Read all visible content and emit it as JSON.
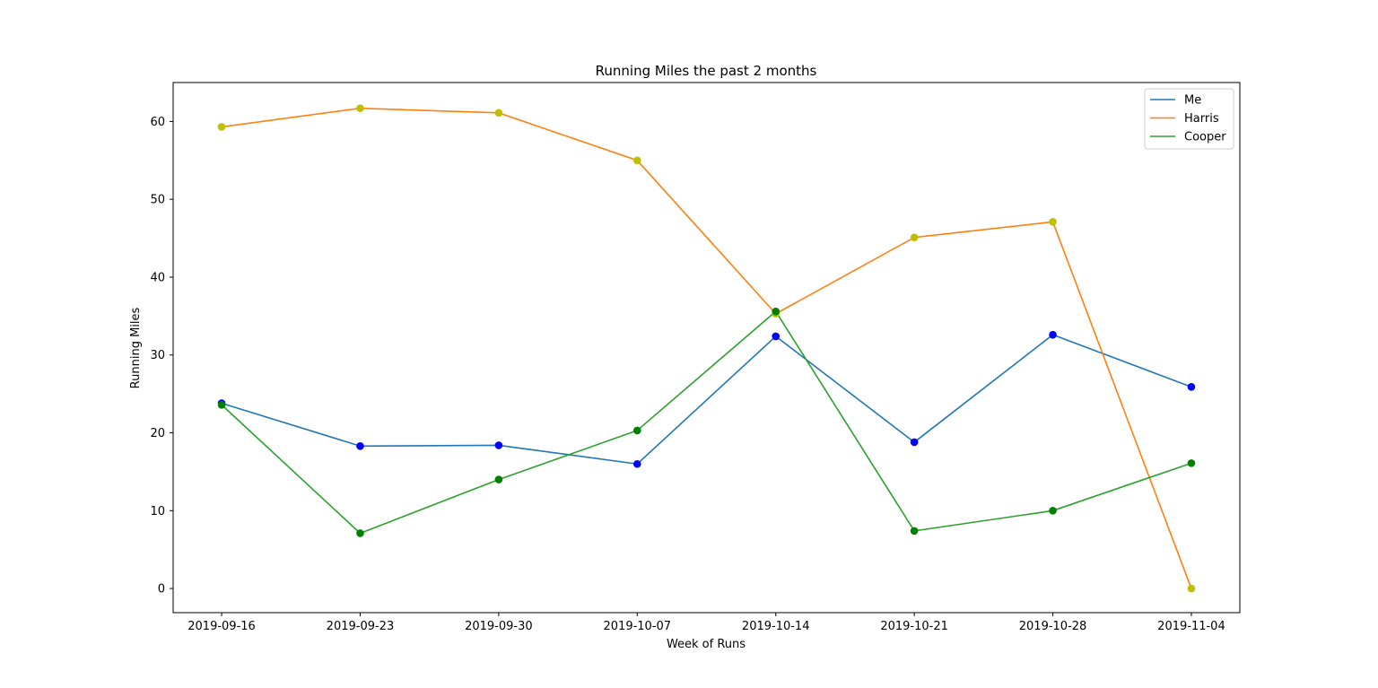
{
  "chart_data": {
    "type": "line",
    "title": "Running Miles the past 2 months",
    "xlabel": "Week of Runs",
    "ylabel": "Running Miles",
    "categories": [
      "2019-09-16",
      "2019-09-23",
      "2019-09-30",
      "2019-10-07",
      "2019-10-14",
      "2019-10-21",
      "2019-10-28",
      "2019-11-04"
    ],
    "yticks": [
      "0",
      "10",
      "20",
      "30",
      "40",
      "50",
      "60"
    ],
    "ylim": [
      -3.1,
      65
    ],
    "grid": false,
    "legend_position": "top-right",
    "series": [
      {
        "name": "Me",
        "values": [
          23.8,
          18.3,
          18.4,
          16.0,
          32.4,
          18.8,
          32.6,
          25.9
        ],
        "line_color": "#1f77b4",
        "marker_color": "#0000ff"
      },
      {
        "name": "Harris",
        "values": [
          59.3,
          61.7,
          61.1,
          55.0,
          35.3,
          45.1,
          47.1,
          0.0
        ],
        "line_color": "#ff7f0e",
        "marker_color": "#bfbf00"
      },
      {
        "name": "Cooper",
        "values": [
          23.6,
          7.1,
          14.0,
          20.3,
          35.6,
          7.4,
          10.0,
          16.1
        ],
        "line_color": "#2ca02c",
        "marker_color": "#008000"
      }
    ]
  }
}
